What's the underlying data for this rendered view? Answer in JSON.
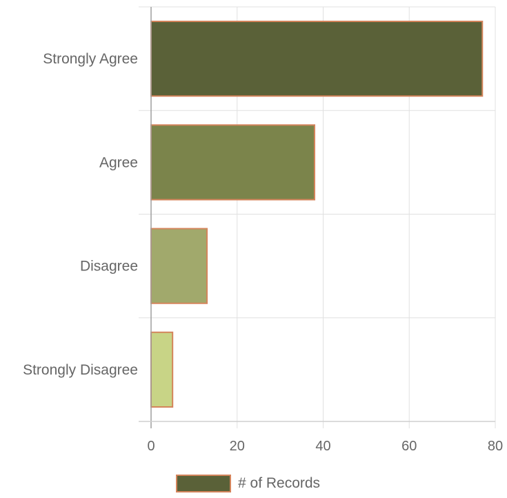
{
  "chart_data": {
    "type": "bar",
    "orientation": "horizontal",
    "categories": [
      "Strongly Agree",
      "Agree",
      "Disagree",
      "Strongly Disagree"
    ],
    "series": [
      {
        "name": "# of Records",
        "values": [
          77,
          38,
          13,
          5
        ],
        "colors": [
          "#5a6138",
          "#7b844b",
          "#a1a96c",
          "#c8d486"
        ],
        "border_color": "#d4845b"
      }
    ],
    "title": "",
    "xlabel": "",
    "ylabel": "",
    "xlim": [
      0,
      80
    ],
    "x_ticks": [
      "0",
      "20",
      "40",
      "60",
      "80"
    ],
    "grid": true,
    "legend": {
      "position": "bottom",
      "label": "# of Records",
      "swatch_color": "#5a6138"
    }
  }
}
